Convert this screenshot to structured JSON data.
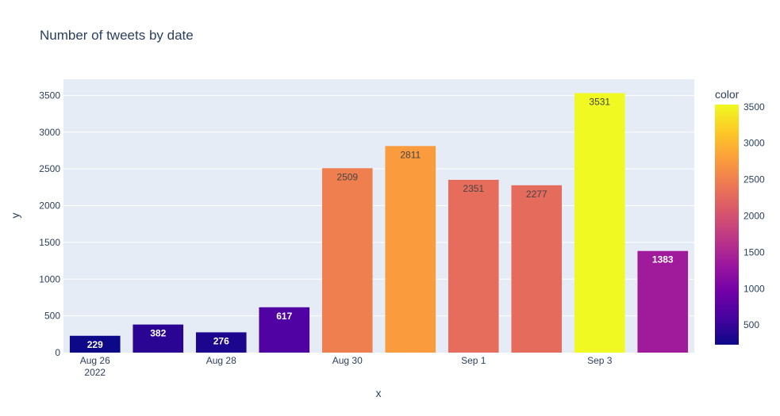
{
  "chart_data": {
    "type": "bar",
    "title": "Number of tweets by date",
    "xlabel": "x",
    "ylabel": "y",
    "x": [
      "2022-08-26",
      "2022-08-27",
      "2022-08-28",
      "2022-08-29",
      "2022-08-30",
      "2022-08-31",
      "2022-09-01",
      "2022-09-02",
      "2022-09-03",
      "2022-09-04"
    ],
    "values": [
      229,
      382,
      276,
      617,
      2509,
      2811,
      2351,
      2277,
      3531,
      1383
    ],
    "bar_colors": [
      "#0d0887",
      "#2a0593",
      "#1b068d",
      "#5002a2",
      "#f07f4f",
      "#fa9b3d",
      "#e66c5c",
      "#e56b5d",
      "#f0f921",
      "#a01a9c"
    ],
    "bar_label_colors": [
      "#ffffff",
      "#ffffff",
      "#ffffff",
      "#ffffff",
      "#444444",
      "#444444",
      "#444444",
      "#444444",
      "#444444",
      "#ffffff"
    ],
    "x_ticks": [
      {
        "x": "2022-08-26",
        "label": "Aug 26",
        "sublabel": "2022"
      },
      {
        "x": "2022-08-28",
        "label": "Aug 28",
        "sublabel": ""
      },
      {
        "x": "2022-08-30",
        "label": "Aug 30",
        "sublabel": ""
      },
      {
        "x": "2022-09-01",
        "label": "Sep 1",
        "sublabel": ""
      },
      {
        "x": "2022-09-03",
        "label": "Sep 3",
        "sublabel": ""
      }
    ],
    "y_ticks": [
      0,
      500,
      1000,
      1500,
      2000,
      2500,
      3000,
      3500
    ],
    "ylim": [
      0,
      3720
    ],
    "grid": true,
    "colorbar": {
      "title": "color",
      "ticks": [
        500,
        1000,
        1500,
        2000,
        2500,
        3000,
        3500
      ],
      "range": [
        229,
        3531
      ],
      "colorscale": [
        "#0d0887",
        "#46039f",
        "#7201a8",
        "#9c179e",
        "#bd3786",
        "#d8576b",
        "#ed7953",
        "#fb9f3a",
        "#fdca26",
        "#f0f921"
      ]
    },
    "plot_bg": "#e5ecf6"
  }
}
